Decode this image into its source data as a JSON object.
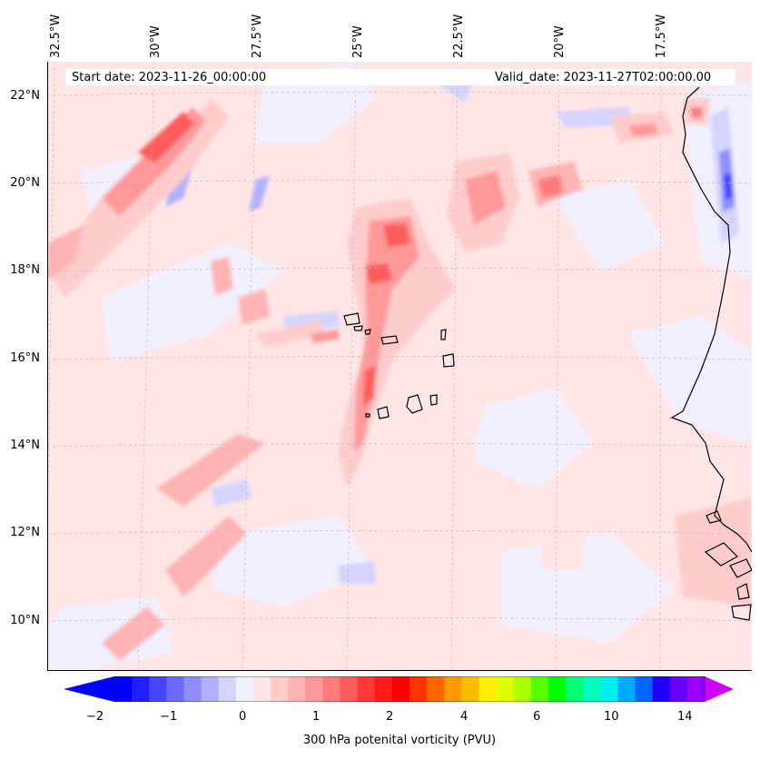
{
  "map": {
    "start_date": "Start date: 2023-11-26_00:00:00",
    "valid_date": "Valid_date: 2023-11-27T02:00:00.00",
    "lon_labels": [
      "32.5°W",
      "30°W",
      "27.5°W",
      "25°W",
      "22.5°W",
      "20°W",
      "17.5°W"
    ],
    "lat_labels": [
      "22°N",
      "20°N",
      "18°N",
      "16°N",
      "14°N",
      "12°N",
      "10°N"
    ],
    "variable": "300 hPa potential vorticity",
    "units": "PVU"
  },
  "colorbar": {
    "label": "300 hPa potenital vorticity (PVU)",
    "tick_labels": [
      "−2",
      "−1",
      "0",
      "1",
      "2",
      "4",
      "6",
      "10",
      "14"
    ],
    "colors": [
      "#0000ff",
      "#2020ff",
      "#4646ff",
      "#6a6aff",
      "#8e8eff",
      "#b0b0ff",
      "#d4d4ff",
      "#f0f0ff",
      "#ffe6e6",
      "#ffcccc",
      "#ffb3b3",
      "#ff9999",
      "#ff7a7a",
      "#ff5c5c",
      "#ff3838",
      "#ff1a1a",
      "#ff0000",
      "#ff3300",
      "#ff6600",
      "#ff9900",
      "#ffbb00",
      "#ffee00",
      "#ddff00",
      "#aaff00",
      "#55ff00",
      "#00ff00",
      "#00ff77",
      "#00ffbb",
      "#00eeee",
      "#00aaff",
      "#0066ff",
      "#2200ff",
      "#6600ff",
      "#9900ff"
    ],
    "extend_min_color": "#0000ff",
    "extend_max_color": "#cc00ff"
  }
}
